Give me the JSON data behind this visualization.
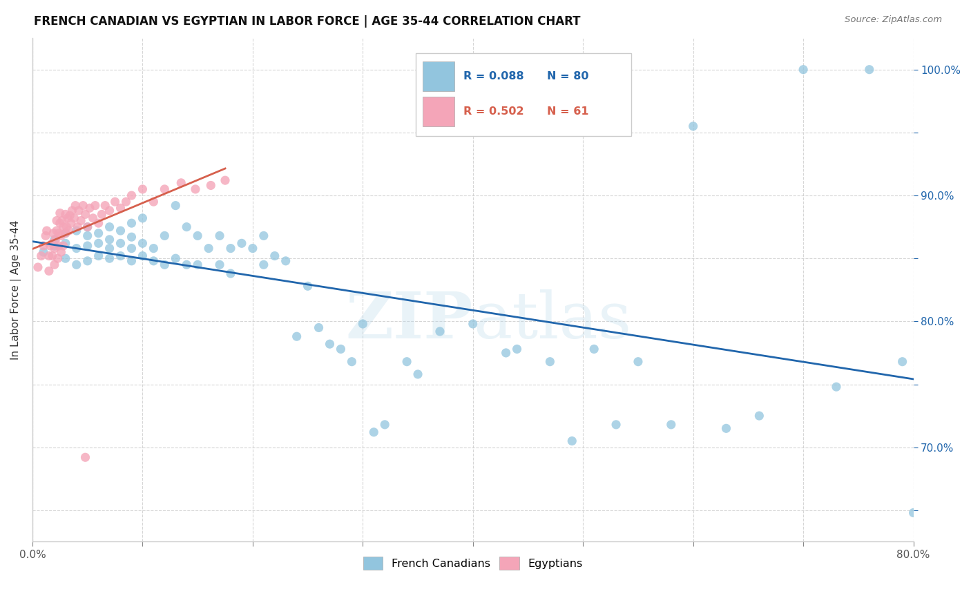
{
  "title": "FRENCH CANADIAN VS EGYPTIAN IN LABOR FORCE | AGE 35-44 CORRELATION CHART",
  "source": "Source: ZipAtlas.com",
  "ylabel": "In Labor Force | Age 35-44",
  "xlim": [
    0.0,
    0.8
  ],
  "ylim": [
    0.625,
    1.025
  ],
  "blue_color": "#92c5de",
  "pink_color": "#f4a5b8",
  "blue_line_color": "#2166ac",
  "pink_line_color": "#d6604d",
  "watermark": "ZIPatlas",
  "blue_R": 0.088,
  "blue_N": 80,
  "pink_R": 0.502,
  "pink_N": 61,
  "blue_scatter_x": [
    0.01,
    0.02,
    0.02,
    0.03,
    0.03,
    0.03,
    0.04,
    0.04,
    0.04,
    0.05,
    0.05,
    0.05,
    0.05,
    0.06,
    0.06,
    0.06,
    0.07,
    0.07,
    0.07,
    0.07,
    0.08,
    0.08,
    0.08,
    0.09,
    0.09,
    0.09,
    0.09,
    0.1,
    0.1,
    0.1,
    0.11,
    0.11,
    0.12,
    0.12,
    0.13,
    0.13,
    0.14,
    0.14,
    0.15,
    0.15,
    0.16,
    0.17,
    0.17,
    0.18,
    0.18,
    0.19,
    0.2,
    0.21,
    0.21,
    0.22,
    0.23,
    0.24,
    0.25,
    0.26,
    0.27,
    0.28,
    0.29,
    0.3,
    0.31,
    0.32,
    0.34,
    0.35,
    0.37,
    0.4,
    0.43,
    0.44,
    0.47,
    0.49,
    0.51,
    0.53,
    0.55,
    0.58,
    0.6,
    0.63,
    0.66,
    0.7,
    0.73,
    0.76,
    0.79,
    0.8
  ],
  "blue_scatter_y": [
    0.855,
    0.86,
    0.865,
    0.85,
    0.862,
    0.87,
    0.845,
    0.858,
    0.872,
    0.848,
    0.86,
    0.868,
    0.875,
    0.852,
    0.862,
    0.87,
    0.85,
    0.858,
    0.865,
    0.875,
    0.852,
    0.862,
    0.872,
    0.848,
    0.858,
    0.867,
    0.878,
    0.852,
    0.862,
    0.882,
    0.848,
    0.858,
    0.845,
    0.868,
    0.85,
    0.892,
    0.845,
    0.875,
    0.845,
    0.868,
    0.858,
    0.845,
    0.868,
    0.838,
    0.858,
    0.862,
    0.858,
    0.845,
    0.868,
    0.852,
    0.848,
    0.788,
    0.828,
    0.795,
    0.782,
    0.778,
    0.768,
    0.798,
    0.712,
    0.718,
    0.768,
    0.758,
    0.792,
    0.798,
    0.775,
    0.778,
    0.768,
    0.705,
    0.778,
    0.718,
    0.768,
    0.718,
    0.955,
    0.715,
    0.725,
    1.0,
    0.748,
    1.0,
    0.768,
    0.648
  ],
  "pink_scatter_x": [
    0.005,
    0.008,
    0.01,
    0.012,
    0.013,
    0.015,
    0.015,
    0.016,
    0.018,
    0.018,
    0.019,
    0.02,
    0.02,
    0.021,
    0.022,
    0.022,
    0.023,
    0.024,
    0.024,
    0.025,
    0.025,
    0.026,
    0.026,
    0.027,
    0.028,
    0.028,
    0.03,
    0.03,
    0.031,
    0.032,
    0.033,
    0.034,
    0.035,
    0.036,
    0.038,
    0.039,
    0.041,
    0.042,
    0.044,
    0.046,
    0.048,
    0.05,
    0.052,
    0.055,
    0.057,
    0.06,
    0.063,
    0.066,
    0.07,
    0.075,
    0.08,
    0.085,
    0.09,
    0.1,
    0.11,
    0.12,
    0.135,
    0.148,
    0.162,
    0.175,
    0.048
  ],
  "pink_scatter_y": [
    0.843,
    0.852,
    0.86,
    0.868,
    0.872,
    0.84,
    0.852,
    0.86,
    0.852,
    0.862,
    0.87,
    0.845,
    0.858,
    0.865,
    0.872,
    0.88,
    0.85,
    0.86,
    0.87,
    0.878,
    0.886,
    0.855,
    0.868,
    0.88,
    0.86,
    0.875,
    0.87,
    0.885,
    0.875,
    0.882,
    0.872,
    0.884,
    0.878,
    0.888,
    0.882,
    0.892,
    0.875,
    0.888,
    0.88,
    0.892,
    0.885,
    0.875,
    0.89,
    0.882,
    0.892,
    0.878,
    0.885,
    0.892,
    0.888,
    0.895,
    0.89,
    0.895,
    0.9,
    0.905,
    0.895,
    0.905,
    0.91,
    0.905,
    0.908,
    0.912,
    0.692
  ]
}
